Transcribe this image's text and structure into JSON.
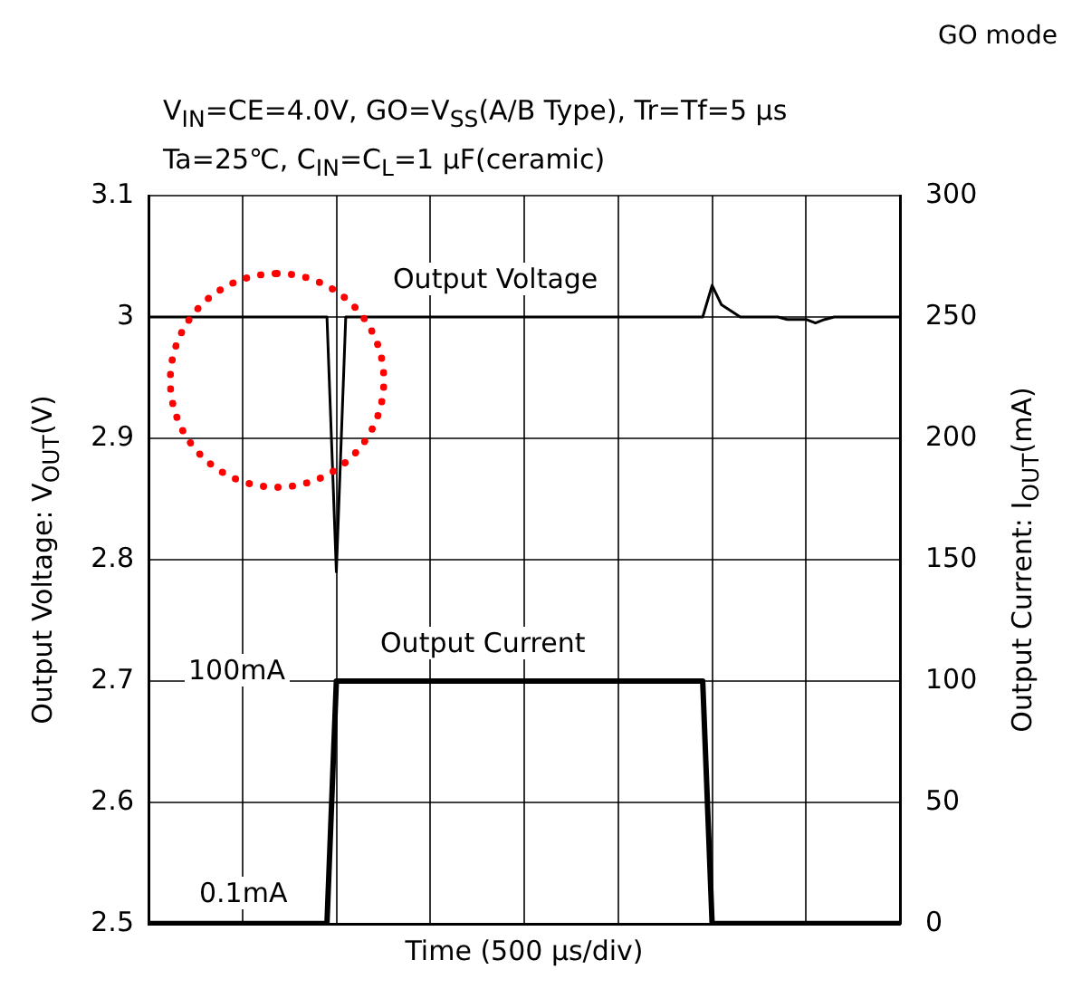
{
  "chart_data": {
    "type": "line",
    "subtitle": "V$_{IN}$=CE=4.0V, GO=V$_{SS}$(A/B Type), Tr=Tf=5 μs\nTa=25℃, C$_{IN}$=C$_{L}$=1 μF(ceramic)",
    "xlabel": "Time (500 μs/div)",
    "ylabel": "Output Voltage: V$_{OUT}$(V)",
    "y2label": "Output Current: I$_{OUT}$(mA)",
    "categories": [
      null,
      null,
      null,
      null,
      null,
      null,
      null,
      null,
      null,
      null,
      null,
      null,
      null,
      null,
      null,
      null,
      null,
      null,
      null,
      null,
      null,
      null,
      null,
      null,
      null,
      null,
      null,
      null,
      null,
      null,
      null,
      null,
      null,
      null,
      null,
      null,
      null,
      null,
      null,
      null,
      null,
      null,
      null,
      null,
      null,
      null,
      null,
      null,
      null,
      null,
      null,
      null,
      null,
      null,
      null,
      null,
      null,
      null,
      null,
      null,
      null,
      null,
      null,
      null,
      null,
      null,
      null,
      null,
      null,
      null,
      null,
      null,
      null,
      null,
      null,
      null,
      null,
      null,
      null,
      null,
      null
    ],
    "series": [
      {
        "color": "#000000",
        "values": [
          3.0,
          3.0,
          3.0,
          3.0,
          3.0,
          3.0,
          3.0,
          3.0,
          3.0,
          3.0,
          3.0,
          3.0,
          3.0,
          3.0,
          3.0,
          3.0,
          3.0,
          3.0,
          3.0,
          3.0,
          2.79,
          3.0,
          3.0,
          3.0,
          3.0,
          3.0,
          3.0,
          3.0,
          3.0,
          3.0,
          3.0,
          3.0,
          3.0,
          3.0,
          3.0,
          3.0,
          3.0,
          3.0,
          3.0,
          3.0,
          3.0,
          3.0,
          3.0,
          3.0,
          3.0,
          3.0,
          3.0,
          3.0,
          3.0,
          3.0,
          3.0,
          3.0,
          3.0,
          3.0,
          3.0,
          3.0,
          3.0,
          3.0,
          3.0,
          3.0,
          3.026,
          3.01,
          3.005,
          3.0,
          3.0,
          3.0,
          3.0,
          3.0,
          2.998,
          2.998,
          2.998,
          2.995,
          2.998,
          3.0,
          3.0,
          3.0,
          3.0,
          3.0,
          3.0,
          3.0,
          3.0
        ]
      },
      {
        "color": "#000000",
        "axis": "y2",
        "values": [
          0.1,
          0.1,
          0.1,
          0.1,
          0.1,
          0.1,
          0.1,
          0.1,
          0.1,
          0.1,
          0.1,
          0.1,
          0.1,
          0.1,
          0.1,
          0.1,
          0.1,
          0.1,
          0.1,
          0.1,
          100,
          100,
          100,
          100,
          100,
          100,
          100,
          100,
          100,
          100,
          100,
          100,
          100,
          100,
          100,
          100,
          100,
          100,
          100,
          100,
          100,
          100,
          100,
          100,
          100,
          100,
          100,
          100,
          100,
          100,
          100,
          100,
          100,
          100,
          100,
          100,
          100,
          100,
          100,
          100,
          0.1,
          0.1,
          0.1,
          0.1,
          0.1,
          0.1,
          0.1,
          0.1,
          0.1,
          0.1,
          0.1,
          0.1,
          0.1,
          0.1,
          0.1,
          0.1,
          0.1,
          0.1,
          0.1,
          0.1,
          0.1
        ]
      }
    ],
    "ylim": [
      2.5,
      3.1
    ],
    "yticks": [
      2.5,
      2.6,
      2.7,
      2.8,
      2.9,
      3,
      3.1
    ],
    "y2lim": [
      0,
      300
    ],
    "y2ticks": [
      0,
      50,
      100,
      150,
      200,
      250,
      300
    ],
    "grid": true,
    "marker": "none",
    "line_style": "solid",
    "annotations": [
      "GO mode",
      "Output Voltage",
      "Output Current",
      "100mA",
      "0.1mA"
    ]
  }
}
